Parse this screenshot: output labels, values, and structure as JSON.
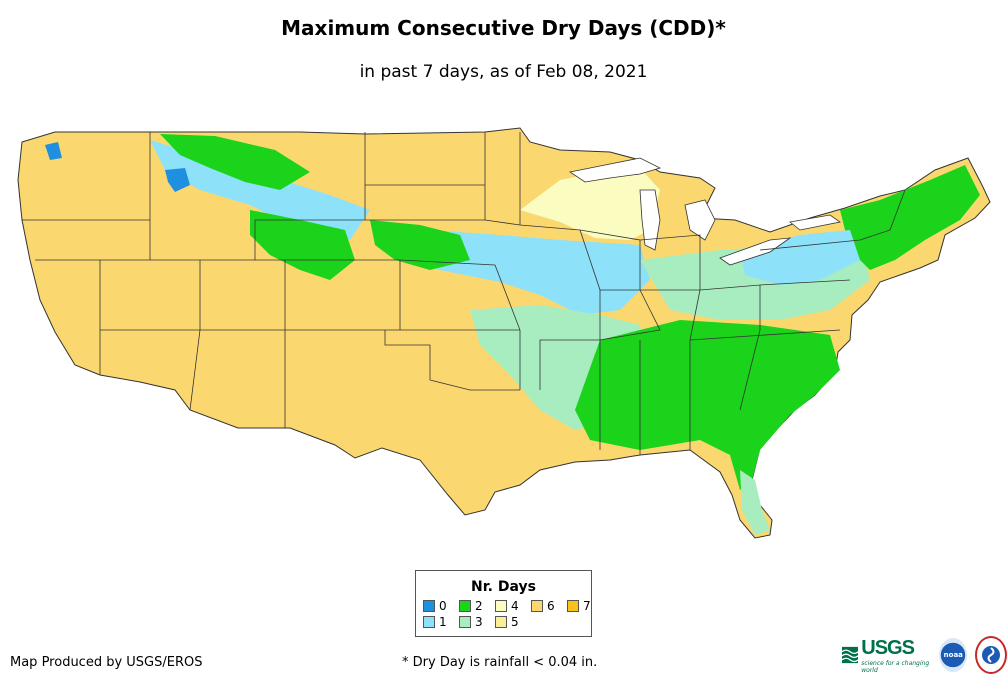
{
  "title": "Maximum Consecutive Dry Days (CDD)*",
  "subtitle": "in past 7 days, as of Feb 08, 2021",
  "legend": {
    "title": "Nr. Days",
    "items": [
      {
        "label": "0",
        "color": "#1f8fe0"
      },
      {
        "label": "1",
        "color": "#8de1f8"
      },
      {
        "label": "2",
        "color": "#1ad31a"
      },
      {
        "label": "3",
        "color": "#a8edc0"
      },
      {
        "label": "4",
        "color": "#fafcc0"
      },
      {
        "label": "5",
        "color": "#fbee96"
      },
      {
        "label": "6",
        "color": "#fbd770"
      },
      {
        "label": "7",
        "color": "#fbc31a"
      }
    ]
  },
  "credit": "Map Produced by USGS/EROS",
  "footnote": "* Dry Day is rainfall < 0.04 in.",
  "logos": {
    "usgs_mark": "USGS",
    "usgs_tagline": "science for a changing world",
    "noaa": "noaa"
  }
}
